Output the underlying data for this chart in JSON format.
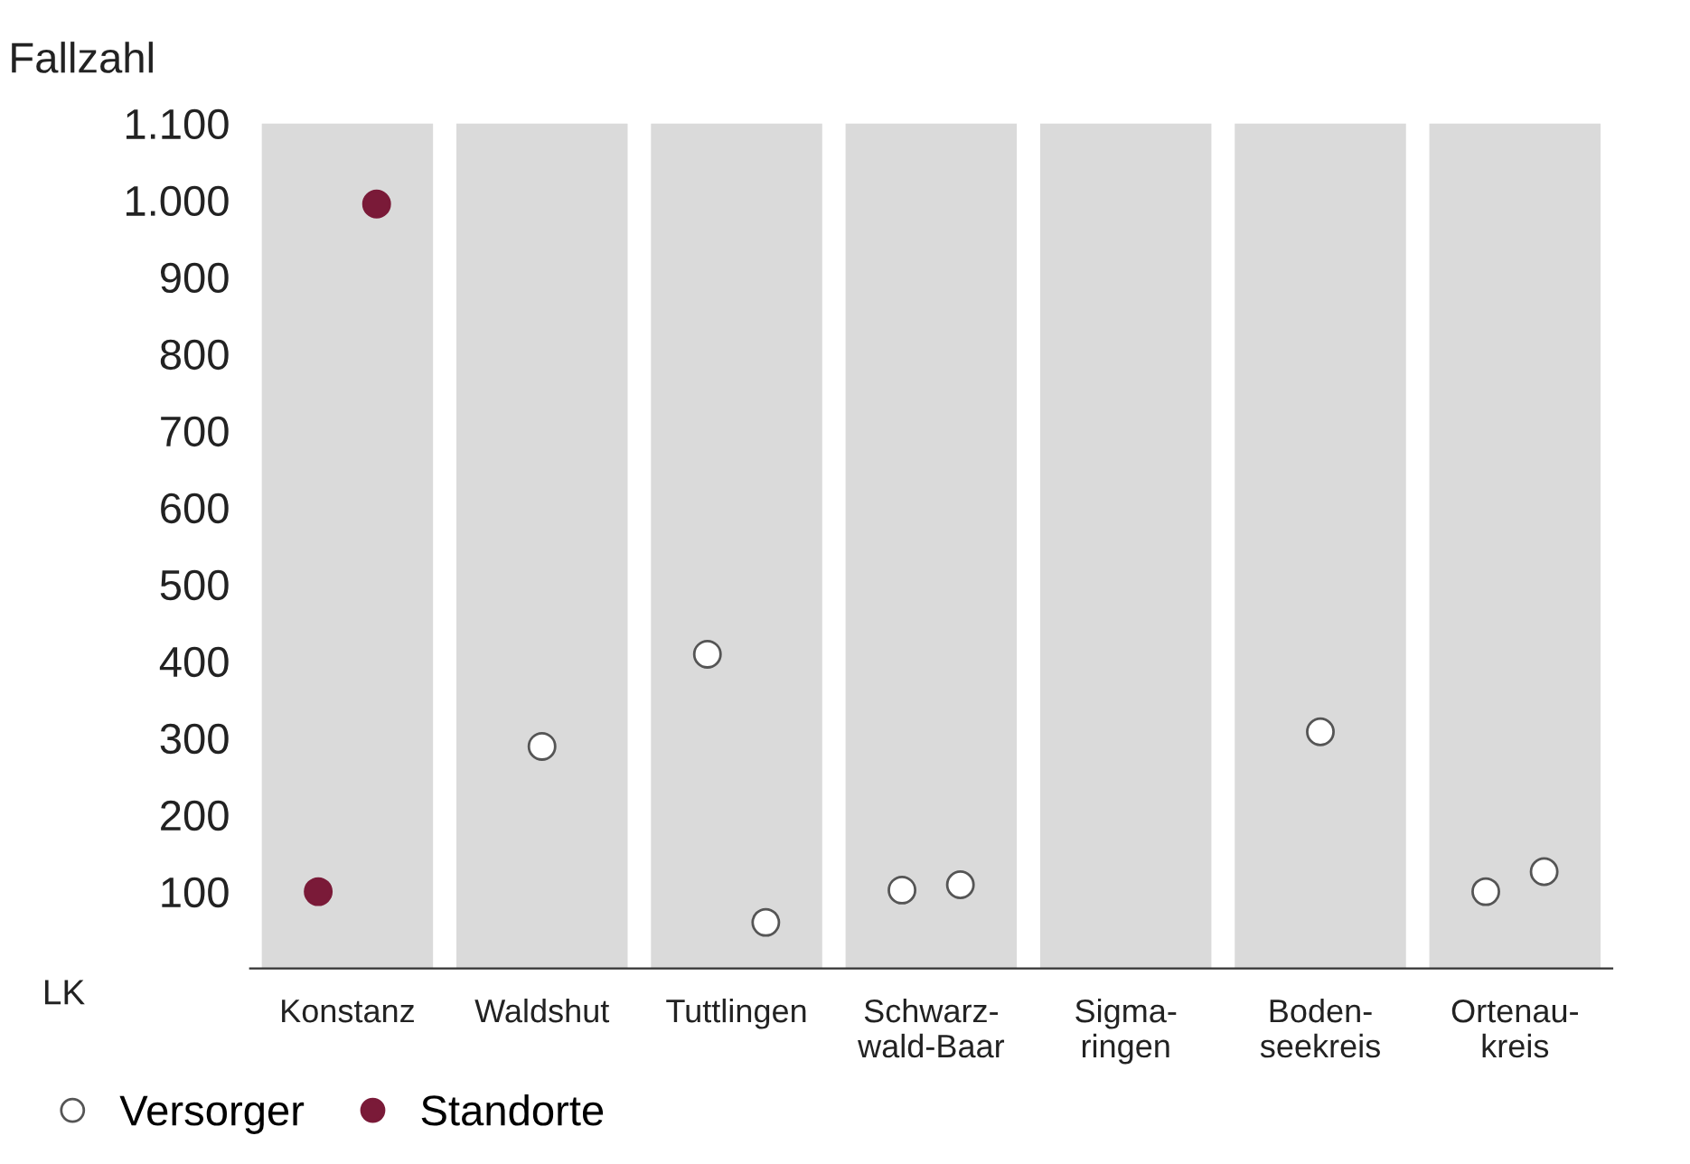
{
  "chart_data": {
    "type": "scatter",
    "ylabel": "Fallzahl",
    "xlabel": "LK",
    "categories": [
      "Konstanz",
      "Waldshut",
      "Tuttlingen",
      "Schwarz-\nwald-Baar",
      "Sigma-\nringen",
      "Boden-\nseekreis",
      "Ortenau-\nkreis"
    ],
    "series": [
      {
        "type": "bar",
        "color": "#dadada",
        "values": [
          1100,
          1100,
          1100,
          1100,
          1100,
          1100,
          1100
        ]
      },
      {
        "name": "Versorger",
        "color": "#ffffff",
        "values": [
          null,
          289,
          409,
          102,
          null,
          308,
          100
        ]
      },
      {
        "color": "#ffffff",
        "values": [
          null,
          null,
          60,
          109,
          null,
          null,
          126
        ]
      },
      {
        "name": "Standorte",
        "color": "#7a1a38",
        "values": [
          100,
          null,
          null,
          null,
          null,
          null,
          null
        ]
      },
      {
        "color": "#7a1a38",
        "values": [
          995,
          null,
          null,
          null,
          null,
          null,
          null
        ]
      }
    ],
    "ylim": [
      0,
      1100
    ],
    "yticks": [
      100,
      200,
      300,
      400,
      500,
      600,
      700,
      800,
      900,
      {
        "value": 1000,
        "label": "1.000"
      },
      {
        "value": 1100,
        "label": "1.100"
      }
    ],
    "marker": "circle",
    "grid": false,
    "legend": "bottom left"
  }
}
